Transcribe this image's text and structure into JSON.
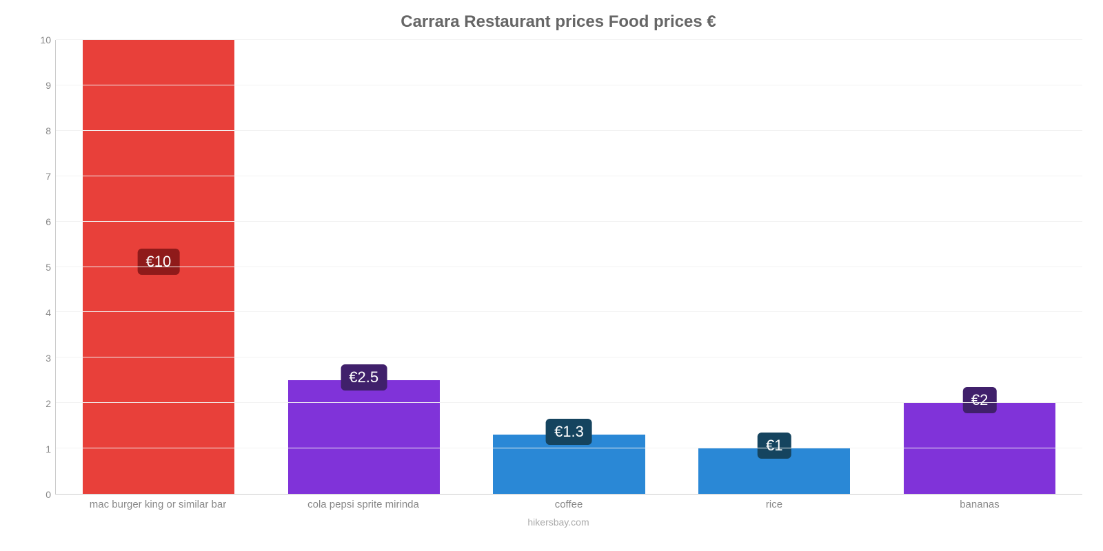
{
  "chart": {
    "type": "bar",
    "title": "Carrara Restaurant prices Food prices €",
    "title_color": "#666666",
    "title_fontsize": 24,
    "background_color": "#ffffff",
    "grid_color": "#f2f2f2",
    "axis_line_color": "#cccccc",
    "tick_label_color": "#888888",
    "tick_label_fontsize": 14,
    "ylim": [
      0,
      10
    ],
    "ytick_step": 1,
    "yticks": [
      0,
      1,
      2,
      3,
      4,
      5,
      6,
      7,
      8,
      9,
      10
    ],
    "bar_width": 0.74,
    "categories": [
      "mac burger king or similar bar",
      "cola pepsi sprite mirinda",
      "coffee",
      "rice",
      "bananas"
    ],
    "values": [
      10,
      2.5,
      1.3,
      1,
      2
    ],
    "bar_colors": [
      "#e8403a",
      "#8033d9",
      "#2a88d6",
      "#2a88d6",
      "#8033d9"
    ],
    "value_labels": [
      "€10",
      "€2.5",
      "€1.3",
      "€1",
      "€2"
    ],
    "value_label_bg": [
      "#8f1a1a",
      "#40206b",
      "#15445f",
      "#15445f",
      "#40206b"
    ],
    "value_label_fontsize": 22,
    "value_label_text_color": "#ffffff",
    "footer": "hikersbay.com",
    "footer_color": "#aaaaaa"
  }
}
